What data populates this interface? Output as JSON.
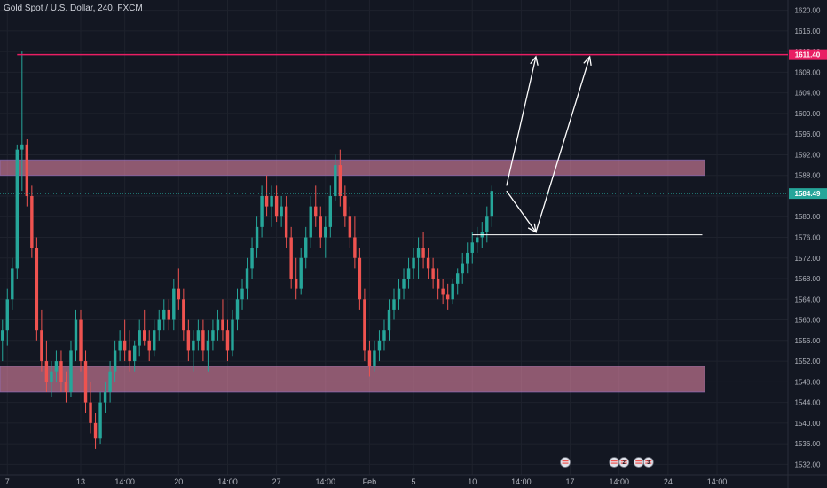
{
  "chart_data": {
    "type": "candlestick",
    "title": "Gold Spot / U.S. Dollar, 240, FXCM",
    "colors": {
      "background": "#131722",
      "up": "#26a69a",
      "down": "#ef5350",
      "zone": "#f48fb1",
      "resistance": "#e91e63",
      "last_price": "#26a69a",
      "arrows": "#ffffff",
      "grid": "#1e222d",
      "axis_text": "#b2b5be"
    },
    "ylim": [
      1530,
      1622
    ],
    "y_ticks": [
      1532,
      1536,
      1540,
      1544,
      1548,
      1552,
      1556,
      1560,
      1564,
      1568,
      1572,
      1576,
      1580,
      1584,
      1588,
      1592,
      1596,
      1600,
      1604,
      1608,
      1612,
      1616,
      1620
    ],
    "y_tick_labels": [
      "1532.00",
      "1536.00",
      "1540.00",
      "1544.00",
      "1548.00",
      "1552.00",
      "1556.00",
      "1560.00",
      "1564.00",
      "1568.00",
      "1572.00",
      "1576.00",
      "1580.00",
      "1584.00",
      "1588.00",
      "1592.00",
      "1596.00",
      "1600.00",
      "1604.00",
      "1608.00",
      "1612.00",
      "1616.00",
      "1620.00"
    ],
    "x_ticks": [
      {
        "bar": 1,
        "label": "7"
      },
      {
        "bar": 16,
        "label": "13"
      },
      {
        "bar": 25,
        "label": "14:00"
      },
      {
        "bar": 36,
        "label": "20"
      },
      {
        "bar": 46,
        "label": "14:00"
      },
      {
        "bar": 56,
        "label": "27"
      },
      {
        "bar": 66,
        "label": "14:00"
      },
      {
        "bar": 75,
        "label": "Feb"
      },
      {
        "bar": 84,
        "label": "5"
      },
      {
        "bar": 96,
        "label": "10"
      },
      {
        "bar": 106,
        "label": "14:00"
      },
      {
        "bar": 116,
        "label": "17"
      },
      {
        "bar": 126,
        "label": "14:00"
      },
      {
        "bar": 136,
        "label": "24"
      },
      {
        "bar": 146,
        "label": "14:00"
      }
    ],
    "bars_visible": 161,
    "candles": [
      [
        1556,
        1560,
        1552,
        1558
      ],
      [
        1558,
        1566,
        1555,
        1564
      ],
      [
        1564,
        1572,
        1562,
        1570
      ],
      [
        1570,
        1594,
        1568,
        1593
      ],
      [
        1593,
        1612,
        1585,
        1594
      ],
      [
        1594,
        1595,
        1582,
        1584
      ],
      [
        1584,
        1586,
        1572,
        1574
      ],
      [
        1574,
        1576,
        1556,
        1558
      ],
      [
        1558,
        1562,
        1550,
        1552
      ],
      [
        1552,
        1556,
        1546,
        1548
      ],
      [
        1548,
        1552,
        1545,
        1550
      ],
      [
        1550,
        1554,
        1548,
        1552
      ],
      [
        1552,
        1554,
        1546,
        1548
      ],
      [
        1548,
        1550,
        1544,
        1546
      ],
      [
        1546,
        1556,
        1545,
        1554
      ],
      [
        1554,
        1562,
        1552,
        1560
      ],
      [
        1560,
        1562,
        1550,
        1552
      ],
      [
        1552,
        1554,
        1542,
        1544
      ],
      [
        1544,
        1548,
        1538,
        1540
      ],
      [
        1540,
        1542,
        1535,
        1537
      ],
      [
        1537,
        1546,
        1536,
        1544
      ],
      [
        1544,
        1548,
        1542,
        1546
      ],
      [
        1546,
        1552,
        1544,
        1550
      ],
      [
        1550,
        1556,
        1548,
        1554
      ],
      [
        1554,
        1558,
        1552,
        1556
      ],
      [
        1556,
        1560,
        1552,
        1554
      ],
      [
        1554,
        1558,
        1550,
        1552
      ],
      [
        1552,
        1556,
        1550,
        1555
      ],
      [
        1555,
        1560,
        1553,
        1558
      ],
      [
        1558,
        1562,
        1555,
        1556
      ],
      [
        1556,
        1558,
        1552,
        1554
      ],
      [
        1554,
        1560,
        1553,
        1558
      ],
      [
        1558,
        1562,
        1556,
        1560
      ],
      [
        1560,
        1564,
        1558,
        1562
      ],
      [
        1562,
        1564,
        1558,
        1560
      ],
      [
        1560,
        1568,
        1558,
        1566
      ],
      [
        1566,
        1570,
        1562,
        1564
      ],
      [
        1564,
        1566,
        1556,
        1558
      ],
      [
        1558,
        1560,
        1552,
        1554
      ],
      [
        1554,
        1558,
        1550,
        1556
      ],
      [
        1556,
        1560,
        1554,
        1558
      ],
      [
        1558,
        1560,
        1552,
        1554
      ],
      [
        1554,
        1558,
        1550,
        1556
      ],
      [
        1556,
        1560,
        1554,
        1558
      ],
      [
        1558,
        1562,
        1556,
        1560
      ],
      [
        1560,
        1564,
        1556,
        1558
      ],
      [
        1558,
        1560,
        1552,
        1554
      ],
      [
        1554,
        1562,
        1553,
        1560
      ],
      [
        1560,
        1566,
        1558,
        1564
      ],
      [
        1564,
        1568,
        1562,
        1566
      ],
      [
        1566,
        1572,
        1564,
        1570
      ],
      [
        1570,
        1576,
        1568,
        1574
      ],
      [
        1574,
        1580,
        1572,
        1578
      ],
      [
        1578,
        1586,
        1576,
        1584
      ],
      [
        1584,
        1588,
        1580,
        1582
      ],
      [
        1582,
        1586,
        1578,
        1584
      ],
      [
        1584,
        1586,
        1579,
        1580
      ],
      [
        1580,
        1584,
        1578,
        1582
      ],
      [
        1582,
        1584,
        1574,
        1576
      ],
      [
        1576,
        1578,
        1566,
        1568
      ],
      [
        1568,
        1572,
        1564,
        1566
      ],
      [
        1566,
        1574,
        1565,
        1572
      ],
      [
        1572,
        1578,
        1570,
        1576
      ],
      [
        1576,
        1584,
        1574,
        1582
      ],
      [
        1582,
        1586,
        1578,
        1580
      ],
      [
        1580,
        1582,
        1574,
        1576
      ],
      [
        1576,
        1580,
        1572,
        1578
      ],
      [
        1578,
        1586,
        1576,
        1584
      ],
      [
        1584,
        1592,
        1583,
        1590
      ],
      [
        1590,
        1593,
        1582,
        1584
      ],
      [
        1584,
        1586,
        1578,
        1580
      ],
      [
        1580,
        1582,
        1574,
        1576
      ],
      [
        1576,
        1580,
        1570,
        1572
      ],
      [
        1572,
        1574,
        1562,
        1564
      ],
      [
        1564,
        1566,
        1552,
        1554
      ],
      [
        1554,
        1556,
        1549,
        1551
      ],
      [
        1551,
        1556,
        1550,
        1554
      ],
      [
        1554,
        1558,
        1552,
        1556
      ],
      [
        1556,
        1560,
        1554,
        1558
      ],
      [
        1558,
        1564,
        1556,
        1562
      ],
      [
        1562,
        1566,
        1560,
        1564
      ],
      [
        1564,
        1568,
        1562,
        1566
      ],
      [
        1566,
        1570,
        1564,
        1568
      ],
      [
        1568,
        1572,
        1566,
        1570
      ],
      [
        1570,
        1574,
        1568,
        1572
      ],
      [
        1572,
        1576,
        1568,
        1574
      ],
      [
        1574,
        1577,
        1570,
        1572
      ],
      [
        1572,
        1574,
        1568,
        1570
      ],
      [
        1570,
        1572,
        1566,
        1568
      ],
      [
        1568,
        1570,
        1564,
        1566
      ],
      [
        1566,
        1568,
        1563,
        1565
      ],
      [
        1565,
        1567,
        1562,
        1564
      ],
      [
        1564,
        1568,
        1563,
        1567
      ],
      [
        1567,
        1570,
        1565,
        1569
      ],
      [
        1569,
        1573,
        1567,
        1571
      ],
      [
        1571,
        1575,
        1569,
        1573
      ],
      [
        1573,
        1577,
        1571,
        1575
      ],
      [
        1575,
        1578,
        1573,
        1576
      ],
      [
        1576,
        1579,
        1574,
        1577
      ],
      [
        1577,
        1582,
        1575,
        1580
      ],
      [
        1580,
        1586,
        1578,
        1585
      ]
    ],
    "candle_start_bar": 0,
    "zones": [
      {
        "from": 1588,
        "to": 1591
      },
      {
        "from": 1546,
        "to": 1551
      }
    ],
    "resistance_line": {
      "price": 1611.4,
      "label": "1611.40"
    },
    "last_price": {
      "price": 1584.49,
      "label": "1584.49"
    },
    "breakout_line": {
      "price": 1576.5,
      "from_bar": 96,
      "to_bar": 143
    },
    "arrows": [
      {
        "from": [
          103,
          1586
        ],
        "to": [
          109,
          1611
        ]
      },
      {
        "from": [
          103,
          1585
        ],
        "to": [
          109,
          1577
        ]
      },
      {
        "from": [
          109,
          1577
        ],
        "to": [
          120,
          1611
        ]
      }
    ],
    "events": [
      {
        "bar": 115,
        "label": ""
      },
      {
        "bar": 125,
        "label": ""
      },
      {
        "bar": 127,
        "label": "2"
      },
      {
        "bar": 130,
        "label": ""
      },
      {
        "bar": 132,
        "label": "3"
      }
    ]
  }
}
